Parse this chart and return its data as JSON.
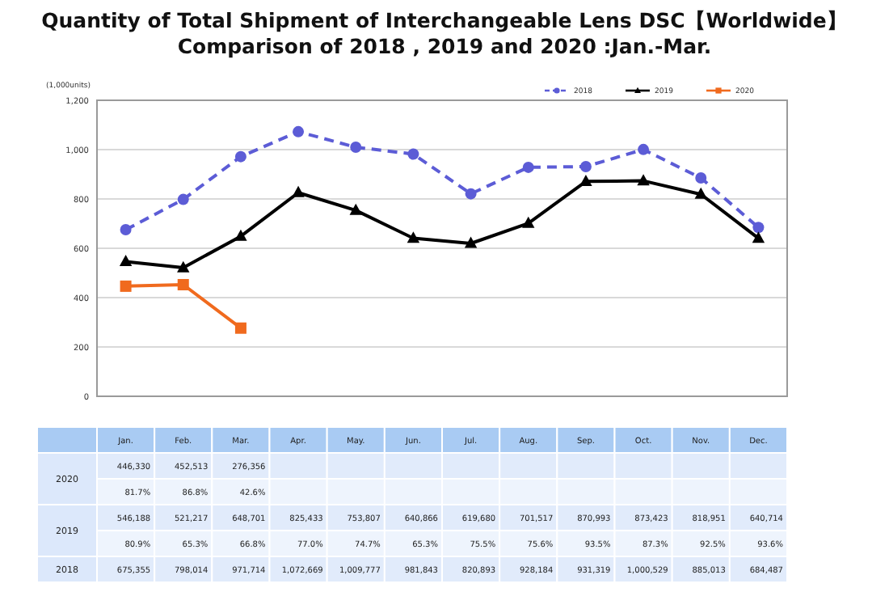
{
  "chart_data": {
    "type": "line",
    "title": "Quantity of Total Shipment of Interchangeable Lens DSC【Worldwide】\nComparison of 2018 , 2019 and 2020 :Jan.-Mar.",
    "ylabel": "(1,000units)",
    "categories": [
      "Jan.",
      "Feb.",
      "Mar.",
      "Apr.",
      "May.",
      "Jun.",
      "Jul.",
      "Aug.",
      "Sep.",
      "Oct.",
      "Nov.",
      "Dec."
    ],
    "series": [
      {
        "name": "2018",
        "color": "#5c5cd6",
        "marker": "circle",
        "line_style": "dashed",
        "values": [
          675.355,
          798.014,
          971.714,
          1072.669,
          1009.777,
          981.843,
          820.893,
          928.184,
          931.319,
          1000.529,
          885.013,
          684.487
        ]
      },
      {
        "name": "2019",
        "color": "#000000",
        "marker": "triangle",
        "line_style": "solid",
        "values": [
          546.188,
          521.217,
          648.701,
          825.433,
          753.807,
          640.866,
          619.68,
          701.517,
          870.993,
          873.423,
          818.951,
          640.714
        ]
      },
      {
        "name": "2020",
        "color": "#f06a1e",
        "marker": "square",
        "line_style": "solid",
        "values": [
          446.33,
          452.513,
          276.356,
          null,
          null,
          null,
          null,
          null,
          null,
          null,
          null,
          null
        ]
      }
    ],
    "annotations": [
      "446,330",
      "452,513",
      "276,356",
      "81.7%",
      "86.8%",
      "42.6%",
      "546,188",
      "521,217",
      "648,701",
      "825,433",
      "753,807",
      "640,866",
      "619,680",
      "701,517",
      "870,993",
      "873,423",
      "818,951",
      "640,714",
      "80.9%",
      "65.3%",
      "66.8%",
      "77.0%",
      "74.7%",
      "65.3%",
      "75.5%",
      "75.6%",
      "93.5%",
      "87.3%",
      "92.5%",
      "93.6%",
      "675,355",
      "798,014",
      "971,714",
      "1,072,669",
      "1,009,777",
      "981,843",
      "820,893",
      "928,184",
      "931,319",
      "1,000,529",
      "885,013",
      "684,487"
    ],
    "ylim": [
      0,
      1200
    ],
    "yticks": [
      0,
      200,
      400,
      600,
      800,
      {
        "value": 1000,
        "label": "1,000"
      },
      {
        "value": 1200,
        "label": "1,200"
      }
    ],
    "grid": "y",
    "legend": "top right"
  }
}
